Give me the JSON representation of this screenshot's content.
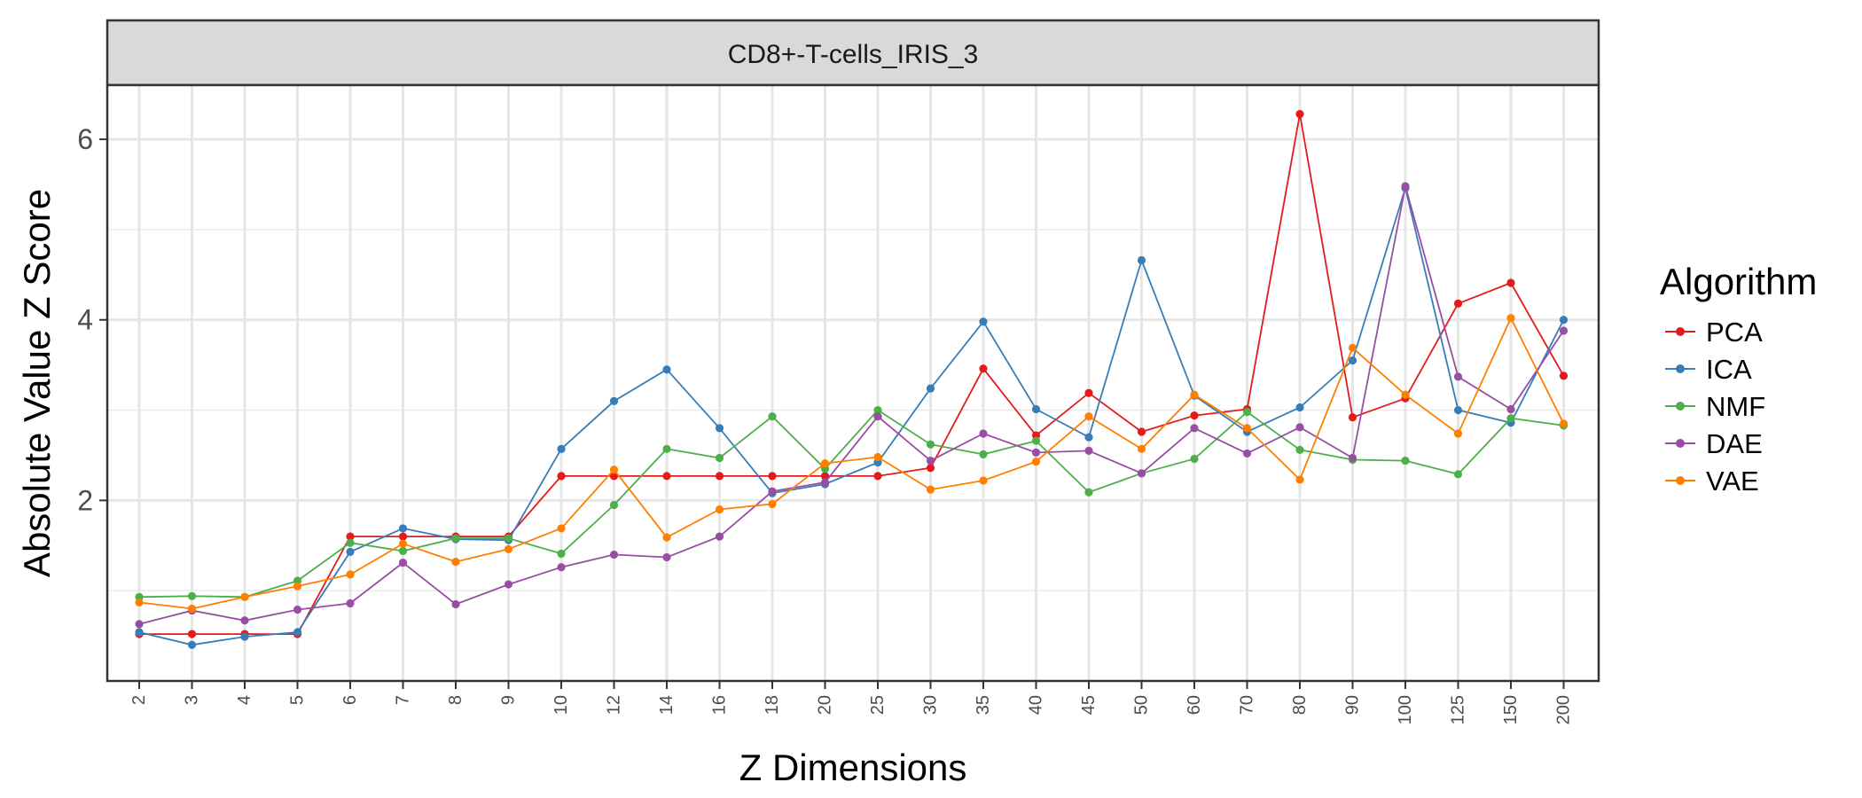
{
  "chart_data": {
    "type": "line",
    "title": "CD8+-T-cells_IRIS_3",
    "xlabel": "Z Dimensions",
    "ylabel": "Absolute Value Z Score",
    "categories": [
      "2",
      "3",
      "4",
      "5",
      "6",
      "7",
      "8",
      "9",
      "10",
      "12",
      "14",
      "16",
      "18",
      "20",
      "25",
      "30",
      "35",
      "40",
      "45",
      "50",
      "60",
      "70",
      "80",
      "90",
      "100",
      "125",
      "150",
      "200"
    ],
    "y_ticks": [
      "2",
      "4",
      "6"
    ],
    "ylim": [
      0.0,
      6.6
    ],
    "grid": true,
    "legend": {
      "title": "Algorithm",
      "position": "right"
    },
    "series": [
      {
        "name": "PCA",
        "color": "#E41A1C",
        "values": [
          0.52,
          0.52,
          0.52,
          0.52,
          1.6,
          1.6,
          1.6,
          1.6,
          2.27,
          2.27,
          2.27,
          2.27,
          2.27,
          2.27,
          2.27,
          2.36,
          3.46,
          2.72,
          3.19,
          2.76,
          2.94,
          3.01,
          6.28,
          2.92,
          3.13,
          4.18,
          4.41,
          3.38
        ]
      },
      {
        "name": "ICA",
        "color": "#377EB8",
        "values": [
          0.54,
          0.4,
          0.49,
          0.54,
          1.43,
          1.69,
          1.57,
          1.56,
          2.57,
          3.1,
          3.45,
          2.8,
          2.08,
          2.18,
          2.42,
          3.24,
          3.98,
          3.01,
          2.7,
          4.66,
          3.16,
          2.76,
          3.03,
          3.55,
          5.46,
          3.0,
          2.86,
          4.0
        ]
      },
      {
        "name": "NMF",
        "color": "#4DAF4A",
        "values": [
          0.93,
          0.94,
          0.93,
          1.11,
          1.53,
          1.44,
          1.58,
          1.58,
          1.41,
          1.95,
          2.57,
          2.47,
          2.93,
          2.35,
          3.0,
          2.62,
          2.51,
          2.66,
          2.09,
          2.3,
          2.46,
          2.98,
          2.56,
          2.45,
          2.44,
          2.29,
          2.91,
          2.83
        ]
      },
      {
        "name": "DAE",
        "color": "#984EA3",
        "values": [
          0.63,
          0.78,
          0.67,
          0.79,
          0.86,
          1.31,
          0.85,
          1.07,
          1.26,
          1.4,
          1.37,
          1.6,
          2.1,
          2.2,
          2.93,
          2.44,
          2.74,
          2.53,
          2.55,
          2.3,
          2.8,
          2.52,
          2.81,
          2.47,
          5.48,
          3.37,
          3.01,
          3.88
        ]
      },
      {
        "name": "VAE",
        "color": "#FF7F00",
        "values": [
          0.87,
          0.8,
          0.93,
          1.05,
          1.18,
          1.52,
          1.32,
          1.46,
          1.69,
          2.34,
          1.59,
          1.9,
          1.96,
          2.41,
          2.48,
          2.12,
          2.22,
          2.43,
          2.93,
          2.57,
          3.17,
          2.8,
          2.23,
          3.69,
          3.17,
          2.74,
          4.02,
          2.85
        ]
      }
    ]
  }
}
